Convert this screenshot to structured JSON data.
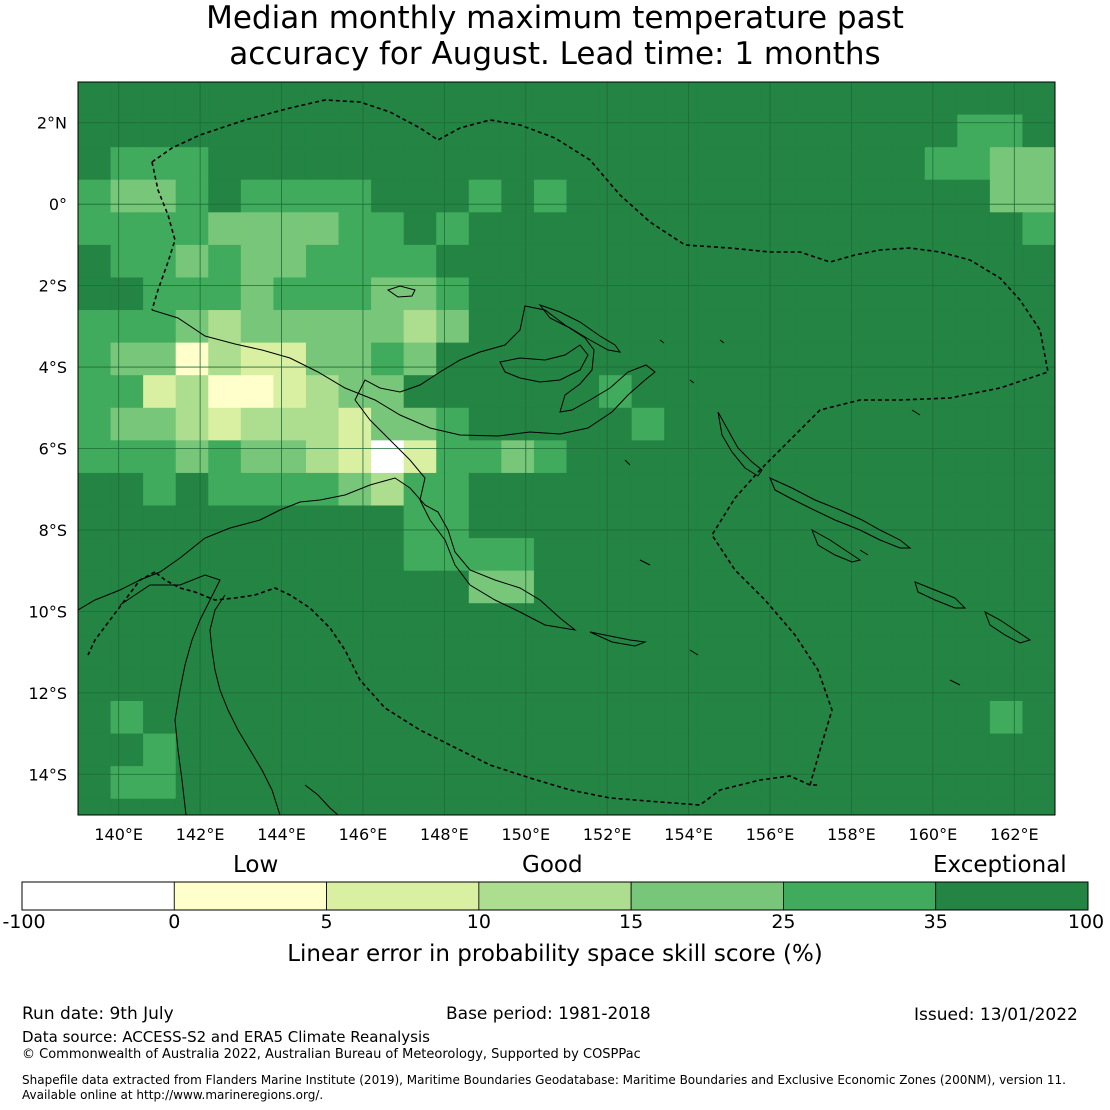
{
  "title": {
    "line1": "Median monthly maximum temperature past",
    "line2": "accuracy for August. Lead time: 1 months"
  },
  "map": {
    "lon_range": [
      139,
      163
    ],
    "lat_range": [
      -15,
      3
    ],
    "grid_step_deg": 0.8,
    "lon_ticks": [
      "140°E",
      "142°E",
      "144°E",
      "146°E",
      "148°E",
      "150°E",
      "152°E",
      "154°E",
      "156°E",
      "158°E",
      "160°E",
      "162°E"
    ],
    "lat_ticks": [
      "2°N",
      "0°",
      "2°S",
      "4°S",
      "6°S",
      "8°S",
      "10°S",
      "12°S",
      "14°S"
    ],
    "gridlines": true,
    "coastline_color": "#000000",
    "eez_boundary_style": "dashed"
  },
  "chart_data": {
    "type": "heatmap",
    "variable": "LEPS skill score (%)",
    "colorbar_label": "Linear error in probability space skill score (%)",
    "category_labels": [
      "Low",
      "Good",
      "Exceptional"
    ],
    "bins": [
      {
        "min": -100,
        "max": 0,
        "color": "#ffffff"
      },
      {
        "min": 0,
        "max": 5,
        "color": "#ffffcc"
      },
      {
        "min": 5,
        "max": 10,
        "color": "#d9f0a3"
      },
      {
        "min": 10,
        "max": 15,
        "color": "#addd8e"
      },
      {
        "min": 15,
        "max": 25,
        "color": "#78c679"
      },
      {
        "min": 25,
        "max": 35,
        "color": "#41ab5d"
      },
      {
        "min": 35,
        "max": 100,
        "color": "#238443"
      }
    ],
    "tick_labels": [
      "-100",
      "0",
      "5",
      "10",
      "15",
      "25",
      "35",
      "100"
    ]
  },
  "footer": {
    "run_date": "Run date: 9th July",
    "base_period": "Base period: 1981-2018",
    "issued": "Issued: 13/01/2022",
    "data_source": "Data source: ACCESS-S2 and ERA5 Climate Reanalysis",
    "copyright": "© Commonwealth of Australia 2022, Australian Bureau of Meteorology, Supported by COSPPac",
    "shapefile_line1": "Shapefile data extracted from Flanders Marine Institute (2019), Maritime Boundaries Geodatabase: Maritime Boundaries and Exclusive Economic Zones (200NM), version 11.",
    "shapefile_line2": "Available online at http://www.marineregions.org/."
  }
}
